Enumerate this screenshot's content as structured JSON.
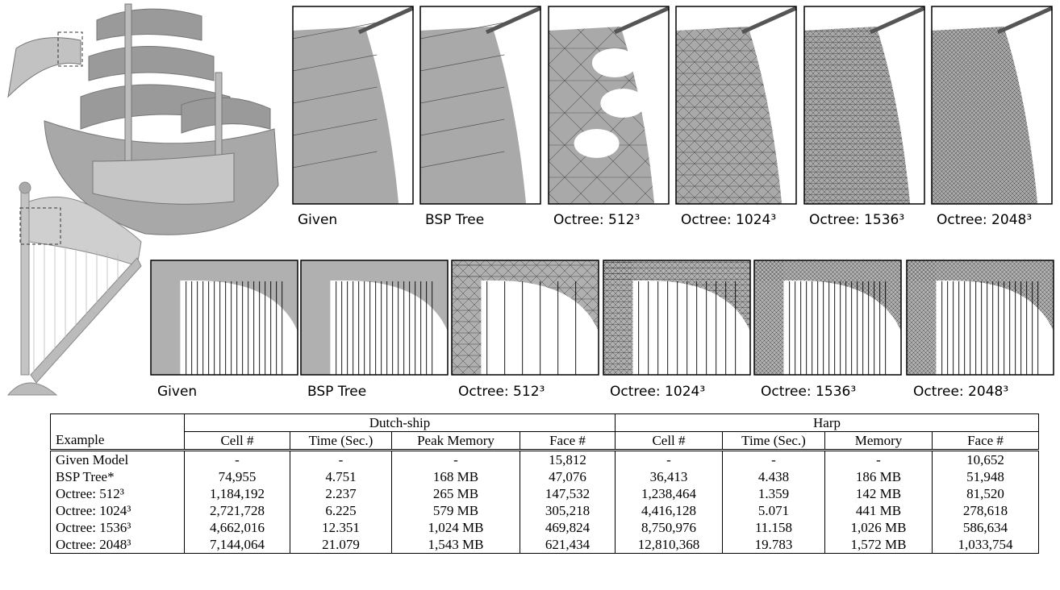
{
  "figure": {
    "ship_captions": [
      "Given",
      "BSP Tree",
      "Octree: 512³",
      "Octree: 1024³",
      "Octree: 1536³",
      "Octree: 2048³"
    ],
    "harp_captions": [
      "Given",
      "BSP Tree",
      "Octree: 512³",
      "Octree: 1024³",
      "Octree: 1536³",
      "Octree: 2048³"
    ]
  },
  "table": {
    "groups": [
      "Dutch-ship",
      "Harp"
    ],
    "columns": [
      "Example",
      "Cell #",
      "Time (Sec.)",
      "Peak Memory",
      "Face #",
      "Cell #",
      "Time (Sec.)",
      "Memory",
      "Face #"
    ],
    "rows": [
      [
        "Given Model",
        "-",
        "-",
        "-",
        "15,812",
        "-",
        "-",
        "-",
        "10,652"
      ],
      [
        "BSP Tree*",
        "74,955",
        "4.751",
        "168 MB",
        "47,076",
        "36,413",
        "4.438",
        "186 MB",
        "51,948"
      ],
      [
        "Octree: 512³",
        "1,184,192",
        "2.237",
        "265 MB",
        "147,532",
        "1,238,464",
        "1.359",
        "142 MB",
        "81,520"
      ],
      [
        "Octree: 1024³",
        "2,721,728",
        "6.225",
        "579 MB",
        "305,218",
        "4,416,128",
        "5.071",
        "441 MB",
        "278,618"
      ],
      [
        "Octree: 1536³",
        "4,662,016",
        "12.351",
        "1,024 MB",
        "469,824",
        "8,750,976",
        "11.158",
        "1,026 MB",
        "586,634"
      ],
      [
        "Octree: 2048³",
        "7,144,064",
        "21.079",
        "1,543 MB",
        "621,434",
        "12,810,368",
        "19.783",
        "1,572 MB",
        "1,033,754"
      ]
    ]
  }
}
